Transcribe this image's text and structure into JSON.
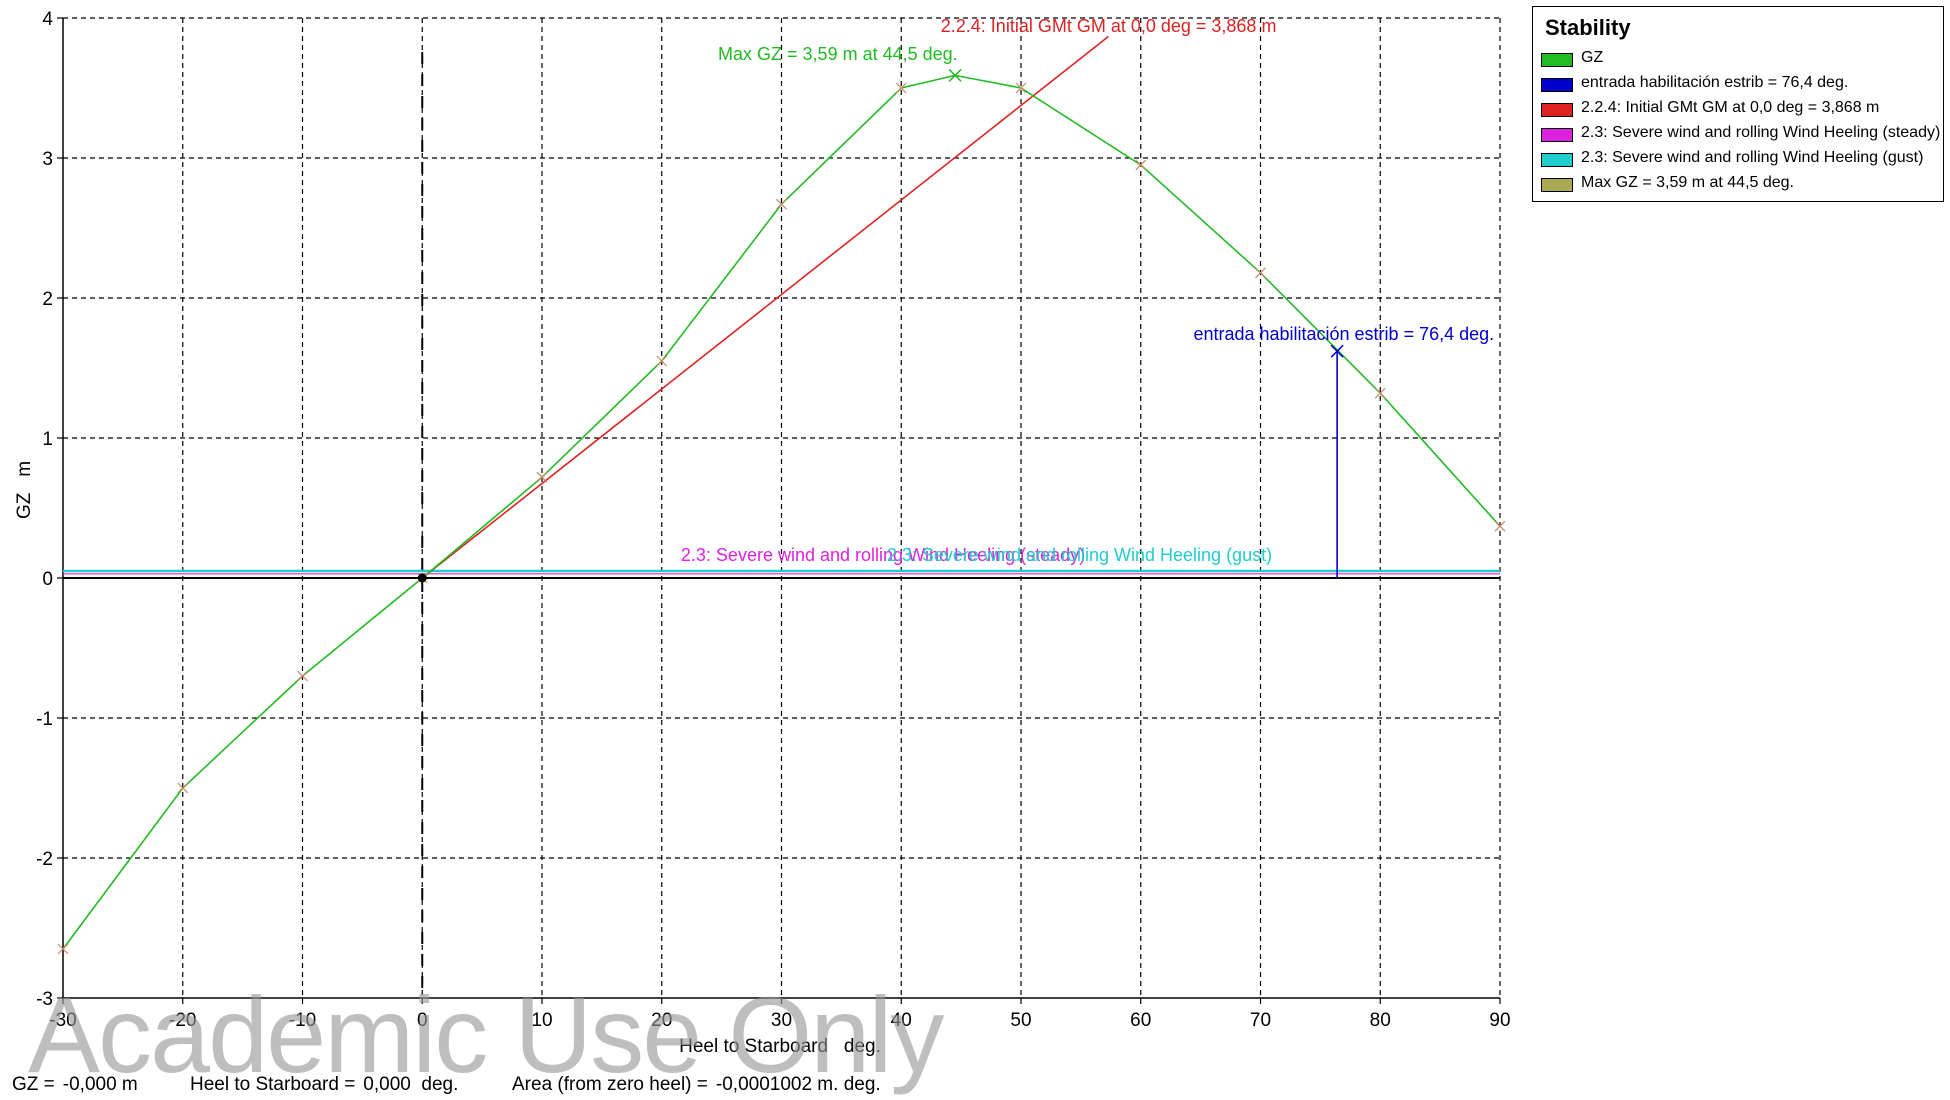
{
  "chart_data": {
    "type": "line",
    "xlabel": "Heel to Starboard   deg.",
    "ylabel": "GZ   m",
    "xlim": [
      -30,
      90
    ],
    "ylim": [
      -3,
      4
    ],
    "x_ticks": [
      -30,
      -20,
      -10,
      0,
      10,
      20,
      30,
      40,
      50,
      60,
      70,
      80,
      90
    ],
    "y_ticks": [
      -3,
      -2,
      -1,
      0,
      1,
      2,
      3,
      4
    ],
    "x_tick_labels": [
      "-30",
      "-20",
      "-10",
      "0",
      "10",
      "20",
      "30",
      "40",
      "50",
      "60",
      "70",
      "80",
      "90"
    ],
    "y_tick_labels": [
      "-3",
      "-2",
      "-1",
      "0",
      "1",
      "2",
      "3",
      "4"
    ],
    "grid": true,
    "legend_position": "top-right",
    "legend_title": "Stability",
    "series": [
      {
        "name": "GZ",
        "color": "#22bb22",
        "x": [
          -30,
          -20,
          -10,
          0,
          10,
          20,
          30,
          40,
          44.5,
          50,
          60,
          70,
          80,
          90
        ],
        "y": [
          -2.65,
          -1.5,
          -0.7,
          0,
          0.72,
          1.55,
          2.67,
          3.5,
          3.59,
          3.5,
          2.95,
          2.18,
          1.32,
          0.37
        ]
      },
      {
        "name": "entrada habilitación estrib = 76,4 deg.",
        "color": "#0000cc",
        "x": [
          76.4,
          76.4
        ],
        "y": [
          0,
          1.62
        ]
      },
      {
        "name": "2.2.4: Initial GMt GM at 0,0 deg = 3,868 m",
        "color": "#dd2222",
        "x": [
          0,
          57.3
        ],
        "y": [
          0,
          3.868
        ]
      },
      {
        "name": "2.3: Severe wind and rolling Wind Heeling (steady)",
        "color": "#dd22dd",
        "x": [
          -30,
          90
        ],
        "y": [
          0.03,
          0.03
        ]
      },
      {
        "name": "2.3: Severe wind and rolling Wind Heeling (gust)",
        "color": "#22cccc",
        "x": [
          -30,
          90
        ],
        "y": [
          0.05,
          0.05
        ]
      },
      {
        "name": "Max GZ = 3,59 m at 44,5 deg.",
        "color": "#aaaa55",
        "x": [
          44.5
        ],
        "y": [
          3.59
        ]
      }
    ],
    "annotations": [
      {
        "text": "2.2.4: Initial GMt GM at 0,0 deg = 3,868 m",
        "color": "#dd2222",
        "x": 43.3,
        "y": 3.9
      },
      {
        "text": "Max GZ = 3,59 m at 44,5 deg.",
        "color": "#22bb22",
        "x": 24.7,
        "y": 3.7
      },
      {
        "text": "entrada habilitación estrib = 76,4 deg.",
        "color": "#0000cc",
        "x": 64.4,
        "y": 1.7
      },
      {
        "text": "2.3: Severe wind and rolling Wind Heeling (steady)",
        "color": "#dd22dd",
        "x": 21.6,
        "y": 0.12
      },
      {
        "text": "2.3: Severe wind and rolling Wind Heeling (gust)",
        "color": "#22cccc",
        "x": 38.8,
        "y": 0.12
      }
    ],
    "vertical_marker": {
      "x": 0,
      "style": "dashed",
      "color": "#000000"
    },
    "zero_line_color": "#000000",
    "marker_color": "#cc8866",
    "grid_color": "#000000"
  },
  "status_bar": {
    "gz_label": "GZ =",
    "gz_value": "-0,000 m",
    "heel_label": "Heel to Starboard =",
    "heel_value": "0,000  deg.",
    "area_label": "Area (from zero heel) =",
    "area_value": "-0,0001002 m. deg."
  },
  "watermark": "Academic Use Only"
}
